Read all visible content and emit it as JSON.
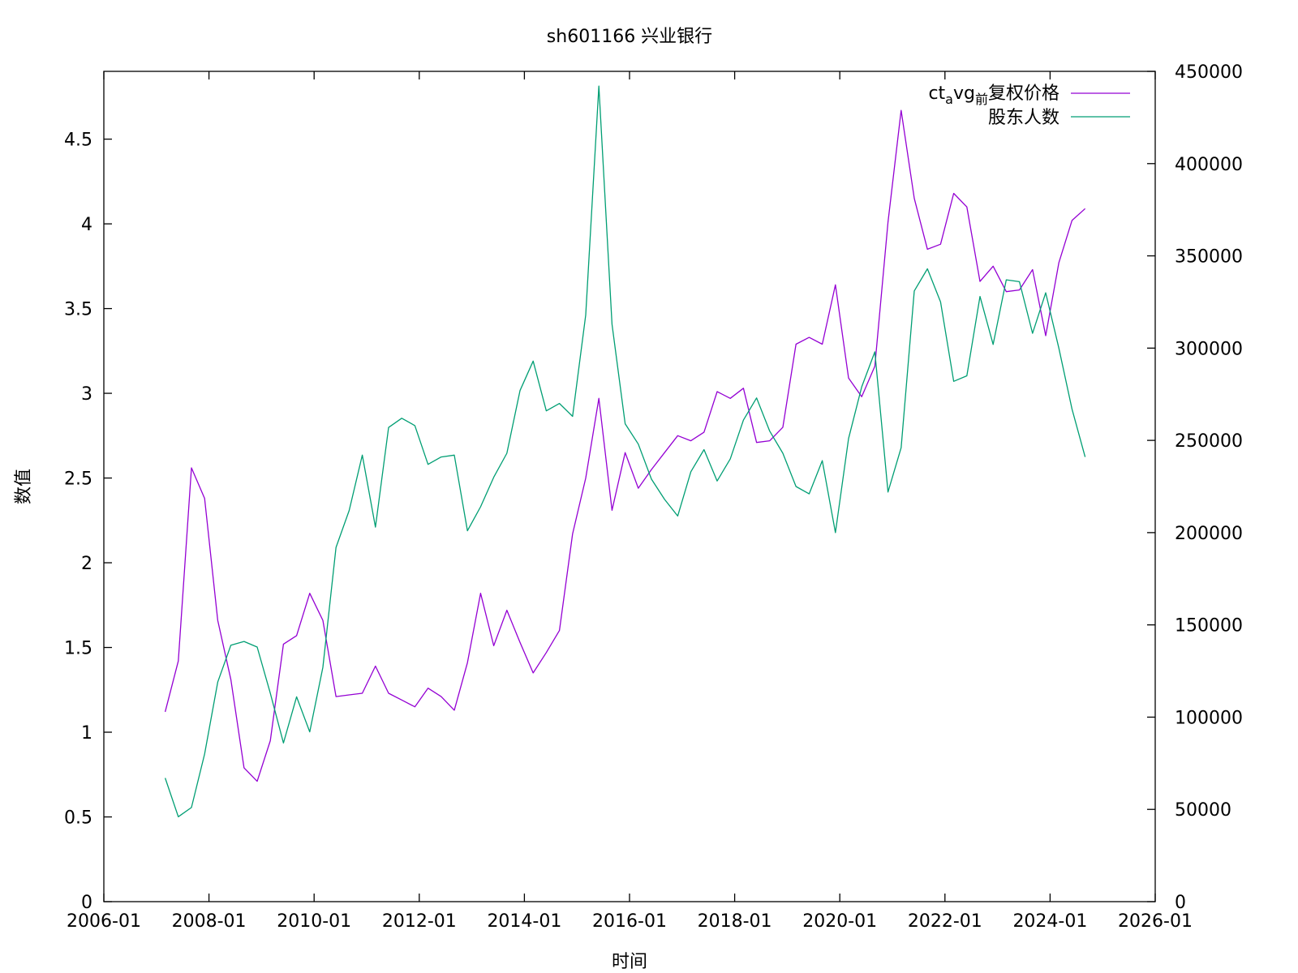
{
  "chart_data": {
    "type": "line",
    "title": "sh601166 兴业银行",
    "xlabel": "时间",
    "ylabel": "数值",
    "xlim": [
      "2006-01",
      "2026-01"
    ],
    "x_ticks": [
      "2006-01",
      "2008-01",
      "2010-01",
      "2012-01",
      "2014-01",
      "2016-01",
      "2018-01",
      "2020-01",
      "2022-01",
      "2024-01",
      "2026-01"
    ],
    "ylim": [
      0,
      4.9
    ],
    "y_ticks": [
      "0",
      "0.5",
      "1",
      "1.5",
      "2",
      "2.5",
      "3",
      "3.5",
      "4",
      "4.5"
    ],
    "y2lim": [
      0,
      450000
    ],
    "y2_ticks": [
      "0",
      "50000",
      "100000",
      "150000",
      "200000",
      "250000",
      "300000",
      "350000",
      "400000",
      "450000"
    ],
    "grid": false,
    "legend_position": "top-right",
    "series": [
      {
        "name_parts": {
          "base": "ct",
          "sub1": "a",
          "mid": "vg",
          "sub2": "前",
          "tail": "复权价格"
        },
        "axis": "left",
        "color": "#9400d3",
        "x": [
          "2007-03",
          "2007-06",
          "2007-09",
          "2007-12",
          "2008-03",
          "2008-06",
          "2008-09",
          "2008-12",
          "2009-03",
          "2009-06",
          "2009-09",
          "2009-12",
          "2010-03",
          "2010-06",
          "2010-09",
          "2010-12",
          "2011-03",
          "2011-06",
          "2011-09",
          "2011-12",
          "2012-03",
          "2012-06",
          "2012-09",
          "2012-12",
          "2013-03",
          "2013-06",
          "2013-09",
          "2013-12",
          "2014-03",
          "2014-06",
          "2014-09",
          "2014-12",
          "2015-03",
          "2015-06",
          "2015-09",
          "2015-12",
          "2016-03",
          "2016-06",
          "2016-09",
          "2016-12",
          "2017-03",
          "2017-06",
          "2017-09",
          "2017-12",
          "2018-03",
          "2018-06",
          "2018-09",
          "2018-12",
          "2019-03",
          "2019-06",
          "2019-09",
          "2019-12",
          "2020-03",
          "2020-06",
          "2020-09",
          "2020-12",
          "2021-03",
          "2021-06",
          "2021-09",
          "2021-12",
          "2022-03",
          "2022-06",
          "2022-09",
          "2022-12",
          "2023-03",
          "2023-06",
          "2023-09",
          "2023-12",
          "2024-03",
          "2024-06",
          "2024-09"
        ],
        "values": [
          1.12,
          1.42,
          2.56,
          2.38,
          1.66,
          1.31,
          0.79,
          0.71,
          0.95,
          1.52,
          1.57,
          1.82,
          1.66,
          1.21,
          1.22,
          1.23,
          1.39,
          1.23,
          1.19,
          1.15,
          1.26,
          1.21,
          1.13,
          1.41,
          1.82,
          1.51,
          1.72,
          1.53,
          1.35,
          1.47,
          1.6,
          2.17,
          2.5,
          2.97,
          2.31,
          2.65,
          2.44,
          2.55,
          2.65,
          2.75,
          2.72,
          2.77,
          3.01,
          2.97,
          3.03,
          2.71,
          2.72,
          2.8,
          3.29,
          3.33,
          3.29,
          3.64,
          3.09,
          2.98,
          3.16,
          4.01,
          4.67,
          4.15,
          3.85,
          3.88,
          4.18,
          4.1,
          3.66,
          3.75,
          3.6,
          3.61,
          3.73,
          3.34,
          3.77,
          4.02,
          4.09
        ]
      },
      {
        "name": "股东人数",
        "axis": "right",
        "color": "#009e73",
        "x": [
          "2007-03",
          "2007-06",
          "2007-09",
          "2007-12",
          "2008-03",
          "2008-06",
          "2008-09",
          "2008-12",
          "2009-03",
          "2009-06",
          "2009-09",
          "2009-12",
          "2010-03",
          "2010-06",
          "2010-09",
          "2010-12",
          "2011-03",
          "2011-06",
          "2011-09",
          "2011-12",
          "2012-03",
          "2012-06",
          "2012-09",
          "2012-12",
          "2013-03",
          "2013-06",
          "2013-09",
          "2013-12",
          "2014-03",
          "2014-06",
          "2014-09",
          "2014-12",
          "2015-03",
          "2015-06",
          "2015-09",
          "2015-12",
          "2016-03",
          "2016-06",
          "2016-09",
          "2016-12",
          "2017-03",
          "2017-06",
          "2017-09",
          "2017-12",
          "2018-03",
          "2018-06",
          "2018-09",
          "2018-12",
          "2019-03",
          "2019-06",
          "2019-09",
          "2019-12",
          "2020-03",
          "2020-06",
          "2020-09",
          "2020-12",
          "2021-03",
          "2021-06",
          "2021-09",
          "2021-12",
          "2022-03",
          "2022-06",
          "2022-09",
          "2022-12",
          "2023-03",
          "2023-06",
          "2023-09",
          "2023-12",
          "2024-03",
          "2024-06",
          "2024-09"
        ],
        "values": [
          67000,
          46000,
          51000,
          80000,
          119000,
          139000,
          141000,
          138000,
          113000,
          86000,
          111000,
          92000,
          127000,
          192000,
          212000,
          242000,
          203000,
          257000,
          262000,
          258000,
          237000,
          241000,
          242000,
          201000,
          214000,
          230000,
          243000,
          277000,
          293000,
          266000,
          270000,
          263000,
          318000,
          442000,
          313000,
          259000,
          248000,
          229000,
          218000,
          209000,
          233000,
          245000,
          228000,
          240000,
          261000,
          273000,
          255000,
          243000,
          225000,
          221000,
          239000,
          200000,
          251000,
          279000,
          298000,
          222000,
          246000,
          331000,
          343000,
          325000,
          282000,
          285000,
          328000,
          302000,
          337000,
          336000,
          308000,
          330000,
          300000,
          267000,
          241000
        ]
      }
    ]
  }
}
